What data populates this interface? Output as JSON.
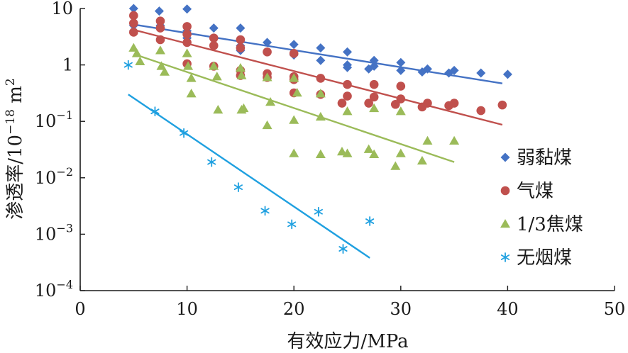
{
  "chart_data": {
    "type": "scatter",
    "title": "",
    "xlabel": "有效应力/MPa",
    "ylabel": "渗透率/10",
    "ylabel_exp": "−18",
    "ylabel_unit": " m",
    "ylabel_unit_exp": "2",
    "xlim": [
      0,
      50
    ],
    "ylim": [
      0.0001,
      10
    ],
    "yscale": "log",
    "x_ticks": [
      0,
      10,
      20,
      30,
      40,
      50
    ],
    "y_ticks": [
      {
        "value": 10,
        "base": "10",
        "exp": ""
      },
      {
        "value": 1,
        "base": "1",
        "exp": ""
      },
      {
        "value": 0.1,
        "base": "10",
        "exp": "−1"
      },
      {
        "value": 0.01,
        "base": "10",
        "exp": "−2"
      },
      {
        "value": 0.001,
        "base": "10",
        "exp": "−3"
      },
      {
        "value": 0.0001,
        "base": "10",
        "exp": "−4"
      }
    ],
    "grid": false,
    "legend_position": "right",
    "series": [
      {
        "name": "弱黏煤",
        "marker": "diamond",
        "color": "#4472c4",
        "points": [
          [
            5,
            10
          ],
          [
            7.4,
            9
          ],
          [
            10,
            9.8
          ],
          [
            5,
            5
          ],
          [
            7.5,
            5
          ],
          [
            10,
            4
          ],
          [
            12.5,
            4.5
          ],
          [
            15,
            4.5
          ],
          [
            5,
            4
          ],
          [
            10,
            3
          ],
          [
            12.5,
            3
          ],
          [
            15,
            2.2
          ],
          [
            17.5,
            2.5
          ],
          [
            20,
            2.3
          ],
          [
            22.5,
            2
          ],
          [
            15,
            1.8
          ],
          [
            17.5,
            1.7
          ],
          [
            20,
            1.5
          ],
          [
            25,
            1.7
          ],
          [
            27.5,
            1.2
          ],
          [
            30,
            1.1
          ],
          [
            22.5,
            1.2
          ],
          [
            25,
            1
          ],
          [
            27.5,
            0.95
          ],
          [
            32.5,
            0.85
          ],
          [
            35,
            0.8
          ],
          [
            37.5,
            0.72
          ],
          [
            40,
            0.68
          ],
          [
            25,
            0.9
          ],
          [
            27,
            0.85
          ],
          [
            30,
            0.8
          ],
          [
            32,
            0.75
          ],
          [
            34.5,
            0.72
          ]
        ],
        "trend": [
          [
            5,
            5.2
          ],
          [
            39.5,
            0.47
          ]
        ]
      },
      {
        "name": "气煤",
        "marker": "circle",
        "color": "#c0504d",
        "points": [
          [
            5,
            7.5
          ],
          [
            7.5,
            6
          ],
          [
            10,
            4.8
          ],
          [
            5,
            5.5
          ],
          [
            7.5,
            4.5
          ],
          [
            10,
            3.5
          ],
          [
            12.5,
            3
          ],
          [
            15,
            2.8
          ],
          [
            5,
            3.8
          ],
          [
            7.5,
            2.8
          ],
          [
            10,
            2.5
          ],
          [
            12.5,
            2.2
          ],
          [
            15,
            2
          ],
          [
            17.5,
            1.7
          ],
          [
            20,
            1.6
          ],
          [
            10,
            1.05
          ],
          [
            12.5,
            0.95
          ],
          [
            15,
            0.8
          ],
          [
            17.5,
            0.7
          ],
          [
            20,
            0.62
          ],
          [
            22.5,
            0.58
          ],
          [
            15,
            0.65
          ],
          [
            17.5,
            0.6
          ],
          [
            20,
            0.55
          ],
          [
            25,
            0.45
          ],
          [
            27.5,
            0.45
          ],
          [
            30,
            0.42
          ],
          [
            20,
            0.32
          ],
          [
            22.5,
            0.3
          ],
          [
            25,
            0.28
          ],
          [
            27.5,
            0.27
          ],
          [
            30,
            0.25
          ],
          [
            32.5,
            0.21
          ],
          [
            35,
            0.21
          ],
          [
            24.5,
            0.21
          ],
          [
            27,
            0.21
          ],
          [
            29.5,
            0.2
          ],
          [
            32,
            0.18
          ],
          [
            34.5,
            0.19
          ],
          [
            37.5,
            0.155
          ],
          [
            39.5,
            0.195
          ]
        ],
        "trend": [
          [
            5,
            4.2
          ],
          [
            39.5,
            0.087
          ]
        ]
      },
      {
        "name": "1/3焦煤",
        "marker": "triangle",
        "color": "#9bbb59",
        "points": [
          [
            5,
            2
          ],
          [
            5.3,
            1.6
          ],
          [
            5.6,
            1.15
          ],
          [
            7.5,
            1.8
          ],
          [
            7.6,
            0.95
          ],
          [
            7.9,
            0.75
          ],
          [
            10,
            1.6
          ],
          [
            10.1,
            0.95
          ],
          [
            10.4,
            0.58
          ],
          [
            10.4,
            0.31
          ],
          [
            12.5,
            0.95
          ],
          [
            12.8,
            0.62
          ],
          [
            12.9,
            0.16
          ],
          [
            15,
            0.88
          ],
          [
            15.1,
            0.65
          ],
          [
            15.3,
            0.17
          ],
          [
            15.1,
            0.16
          ],
          [
            17.5,
            0.6
          ],
          [
            17.8,
            0.22
          ],
          [
            17.5,
            0.085
          ],
          [
            20,
            0.58
          ],
          [
            20.3,
            0.32
          ],
          [
            20,
            0.105
          ],
          [
            20,
            0.027
          ],
          [
            22.5,
            0.31
          ],
          [
            22.5,
            0.12
          ],
          [
            22.5,
            0.026
          ],
          [
            25,
            0.15
          ],
          [
            25,
            0.027
          ],
          [
            24.5,
            0.029
          ],
          [
            27.5,
            0.17
          ],
          [
            27,
            0.032
          ],
          [
            27.5,
            0.026
          ],
          [
            30,
            0.15
          ],
          [
            30,
            0.027
          ],
          [
            29.5,
            0.016
          ],
          [
            32.5,
            0.045
          ],
          [
            32,
            0.02
          ],
          [
            35,
            0.045
          ]
        ],
        "trend": [
          [
            5.5,
            1.45
          ],
          [
            35,
            0.019
          ]
        ]
      },
      {
        "name": "无烟煤",
        "marker": "asterisk",
        "color": "#1fa0e0",
        "points": [
          [
            4.5,
            1
          ],
          [
            7,
            0.15
          ],
          [
            9.7,
            0.062
          ],
          [
            12.3,
            0.019
          ],
          [
            14.8,
            0.0068
          ],
          [
            17.3,
            0.0026
          ],
          [
            19.8,
            0.0015
          ],
          [
            22.3,
            0.0025
          ],
          [
            24.6,
            0.00055
          ],
          [
            27.1,
            0.0017
          ]
        ],
        "trend": [
          [
            4.5,
            0.3
          ],
          [
            27.1,
            0.00038
          ]
        ]
      }
    ]
  }
}
